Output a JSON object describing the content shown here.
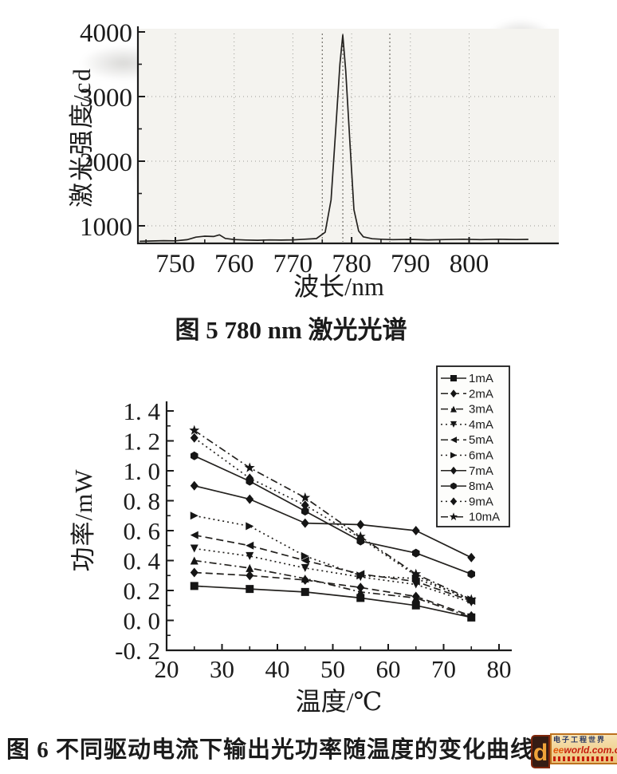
{
  "chart_data": [
    {
      "id": "fig5-laser-spectrum",
      "type": "line",
      "title": "图 5  780 nm 激光光谱",
      "xlabel": "波长/nm",
      "ylabel": "激光强度/cd",
      "xlim": [
        743,
        812
      ],
      "ylim": [
        700,
        4050
      ],
      "xticks": [
        750,
        760,
        770,
        780,
        790,
        800
      ],
      "xticks_minor": [
        745,
        755,
        765,
        775,
        785,
        795,
        805
      ],
      "yticks": [
        1000,
        2000,
        3000,
        4000
      ],
      "yticks_minor": [
        1500,
        2500,
        3500
      ],
      "grid": "dotted",
      "legend_position": "none",
      "peak": {
        "center_nm": 778.5,
        "height_cd": 3950,
        "baseline_cd": 780
      },
      "marker_lines_nm": [
        775.0,
        778.5,
        786.5
      ],
      "x": [
        744,
        746,
        748,
        750,
        752,
        753.5,
        755,
        756.5,
        757.5,
        758.5,
        760,
        762,
        764,
        766,
        768,
        770,
        772,
        774,
        775.5,
        776.5,
        777.3,
        778,
        778.5,
        779,
        779.7,
        780.4,
        781.2,
        782,
        783.5,
        785,
        787,
        790,
        793,
        796,
        799,
        802,
        805,
        808,
        810
      ],
      "y": [
        760,
        765,
        770,
        768,
        785,
        825,
        840,
        835,
        860,
        805,
        788,
        780,
        776,
        782,
        779,
        783,
        792,
        802,
        900,
        1400,
        2500,
        3500,
        3950,
        3400,
        2300,
        1250,
        920,
        830,
        800,
        792,
        786,
        790,
        783,
        788,
        792,
        786,
        793,
        788,
        790
      ]
    },
    {
      "id": "fig6-power-vs-temperature",
      "type": "line",
      "title": "图 6  不同驱动电流下输出光功率随温度的变化曲线",
      "xlabel": "温度/℃",
      "ylabel": "功率/mW",
      "xlim": [
        20,
        80
      ],
      "ylim": [
        -0.2,
        1.4
      ],
      "xticks": [
        20,
        30,
        40,
        50,
        60,
        70,
        80
      ],
      "xticks_minor": [
        25,
        35,
        45,
        55,
        65,
        75
      ],
      "yticks": [
        1.4,
        1.2,
        1.0,
        0.8,
        0.6,
        0.4,
        0.2,
        0.0,
        -0.2
      ],
      "ytick_labels": [
        "1. 4",
        "1. 2",
        "1. 0",
        "0. 8",
        "0. 6",
        "0. 4",
        "0. 2",
        "0. 0",
        "-0. 2"
      ],
      "yticks_minor": [
        1.3,
        1.1,
        0.9,
        0.7,
        0.5,
        0.3,
        0.1,
        -0.1
      ],
      "grid": "off",
      "legend_position": "upper right",
      "categories": [
        25,
        35,
        45,
        55,
        65,
        75
      ],
      "series": [
        {
          "name": "1mA",
          "marker": "square",
          "line": "solid",
          "values": [
            0.23,
            0.21,
            0.19,
            0.15,
            0.1,
            0.02
          ]
        },
        {
          "name": "2mA",
          "marker": "diamond",
          "line": "dash",
          "values": [
            0.32,
            0.3,
            0.27,
            0.22,
            0.16,
            0.03
          ]
        },
        {
          "name": "3mA",
          "marker": "tri-up",
          "line": "dashdot",
          "values": [
            0.4,
            0.35,
            0.28,
            0.19,
            0.15,
            0.02
          ]
        },
        {
          "name": "4mA",
          "marker": "tri-down",
          "line": "dot",
          "values": [
            0.48,
            0.43,
            0.35,
            0.29,
            0.24,
            0.12
          ]
        },
        {
          "name": "5mA",
          "marker": "tri-left",
          "line": "dash",
          "values": [
            0.57,
            0.5,
            0.4,
            0.31,
            0.26,
            0.13
          ]
        },
        {
          "name": "6mA",
          "marker": "tri-right",
          "line": "dot",
          "values": [
            0.7,
            0.63,
            0.43,
            0.3,
            0.28,
            0.14
          ]
        },
        {
          "name": "7mA",
          "marker": "diamond",
          "line": "solid",
          "values": [
            0.9,
            0.81,
            0.65,
            0.64,
            0.6,
            0.42
          ]
        },
        {
          "name": "8mA",
          "marker": "hexagon",
          "line": "solid",
          "values": [
            1.1,
            0.93,
            0.73,
            0.53,
            0.45,
            0.31
          ]
        },
        {
          "name": "9mA",
          "marker": "diamond",
          "line": "dot",
          "values": [
            1.22,
            0.95,
            0.77,
            0.55,
            0.3,
            0.13
          ]
        },
        {
          "name": "10mA",
          "marker": "star",
          "line": "dashdot",
          "values": [
            1.27,
            1.02,
            0.82,
            0.56,
            0.31,
            0.14
          ]
        }
      ]
    }
  ],
  "watermark": {
    "logo_letter": "d",
    "site_cn": "电子工程世界",
    "site_url_ee": "ee",
    "site_url_rest": "world.com.cn"
  },
  "colors": {
    "ink": "#1b1b1b",
    "curve": "#23211e",
    "grid_dot": "#9a9a94",
    "cursor_dot": "#5a5750",
    "plot_bg": "#f4f3ef",
    "legend_bg": "#fdfdfb",
    "wm_red": "#c41200",
    "wm_orange": "#e05000",
    "wm_tan": "#ecbf72",
    "wm_navy": "#1c2a57"
  }
}
